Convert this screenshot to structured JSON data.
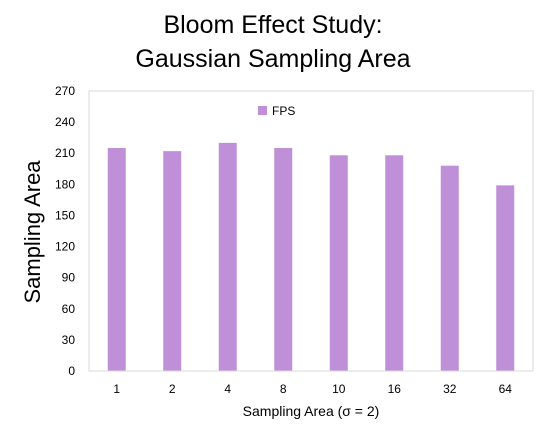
{
  "chart_data": {
    "type": "bar",
    "title_lines": [
      "Bloom Effect Study:",
      "Gaussian Sampling Area"
    ],
    "xlabel": "Sampling Area (σ = 2)",
    "ylabel": "Sampling Area",
    "categories": [
      "1",
      "2",
      "4",
      "8",
      "10",
      "16",
      "32",
      "64"
    ],
    "series": [
      {
        "name": "FPS",
        "values": [
          215,
          212,
          220,
          215,
          208,
          208,
          198,
          179
        ]
      }
    ],
    "ylim": [
      0,
      270
    ],
    "yticks": [
      0,
      30,
      60,
      90,
      120,
      150,
      180,
      210,
      240,
      270
    ],
    "grid": false,
    "legend": "top-left",
    "colors": {
      "bar": "#bf8fd7",
      "axis": "#d9d9d9",
      "frame": "#d9d9d9"
    }
  }
}
